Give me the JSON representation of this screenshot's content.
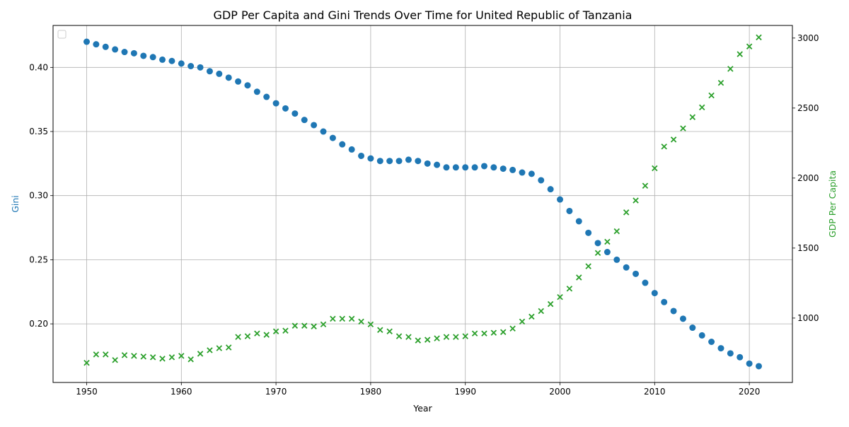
{
  "chart_data": {
    "type": "scatter",
    "title": "GDP Per Capita and Gini Trends Over Time for United Republic of Tanzania",
    "xlabel": "Year",
    "ylabel_left": "Gini",
    "ylabel_right": "GDP Per Capita",
    "xlim": [
      1946.45,
      2024.55
    ],
    "ylim_left": [
      0.1543,
      0.4327
    ],
    "ylim_right": [
      540,
      3090
    ],
    "x_ticks": [
      1950,
      1960,
      1970,
      1980,
      1990,
      2000,
      2010,
      2020
    ],
    "y_left_ticks": [
      0.2,
      0.25,
      0.3,
      0.35,
      0.4
    ],
    "y_left_tick_labels": [
      "0.20",
      "0.25",
      "0.30",
      "0.35",
      "0.40"
    ],
    "y_right_ticks": [
      1000,
      1500,
      2000,
      2500,
      3000
    ],
    "grid": true,
    "legend": "top-left",
    "years": [
      1950,
      1951,
      1952,
      1953,
      1954,
      1955,
      1956,
      1957,
      1958,
      1959,
      1960,
      1961,
      1962,
      1963,
      1964,
      1965,
      1966,
      1967,
      1968,
      1969,
      1970,
      1971,
      1972,
      1973,
      1974,
      1975,
      1976,
      1977,
      1978,
      1979,
      1980,
      1981,
      1982,
      1983,
      1984,
      1985,
      1986,
      1987,
      1988,
      1989,
      1990,
      1991,
      1992,
      1993,
      1994,
      1995,
      1996,
      1997,
      1998,
      1999,
      2000,
      2001,
      2002,
      2003,
      2004,
      2005,
      2006,
      2007,
      2008,
      2009,
      2010,
      2011,
      2012,
      2013,
      2014,
      2015,
      2016,
      2017,
      2018,
      2019,
      2020,
      2021
    ],
    "series": [
      {
        "name": "Gini",
        "axis": "left",
        "marker": "circle",
        "color": "#1f77b4",
        "values": [
          0.42,
          0.418,
          0.416,
          0.414,
          0.412,
          0.411,
          0.409,
          0.408,
          0.406,
          0.405,
          0.403,
          0.401,
          0.4,
          0.397,
          0.395,
          0.392,
          0.389,
          0.386,
          0.381,
          0.377,
          0.372,
          0.368,
          0.364,
          0.359,
          0.355,
          0.35,
          0.345,
          0.34,
          0.336,
          0.331,
          0.329,
          0.327,
          0.327,
          0.327,
          0.328,
          0.327,
          0.325,
          0.324,
          0.322,
          0.322,
          0.322,
          0.322,
          0.323,
          0.322,
          0.321,
          0.32,
          0.318,
          0.317,
          0.312,
          0.305,
          0.297,
          0.288,
          0.28,
          0.271,
          0.263,
          0.256,
          0.25,
          0.244,
          0.239,
          0.232,
          0.224,
          0.217,
          0.21,
          0.204,
          0.197,
          0.191,
          0.186,
          0.181,
          0.177,
          0.174,
          0.169,
          0.167
        ]
      },
      {
        "name": "GDP Per Capita",
        "axis": "right",
        "marker": "x",
        "color": "#2ca02c",
        "values": [
          680,
          740,
          740,
          700,
          735,
          730,
          725,
          720,
          710,
          720,
          730,
          705,
          745,
          770,
          785,
          790,
          865,
          870,
          890,
          880,
          905,
          910,
          945,
          945,
          940,
          955,
          995,
          995,
          995,
          975,
          955,
          915,
          905,
          870,
          865,
          840,
          845,
          855,
          865,
          865,
          870,
          890,
          890,
          895,
          900,
          925,
          975,
          1010,
          1050,
          1100,
          1150,
          1210,
          1290,
          1370,
          1465,
          1545,
          1620,
          1755,
          1840,
          1945,
          2070,
          2225,
          2275,
          2355,
          2435,
          2505,
          2590,
          2680,
          2780,
          2885,
          2940,
          3005
        ]
      }
    ]
  }
}
